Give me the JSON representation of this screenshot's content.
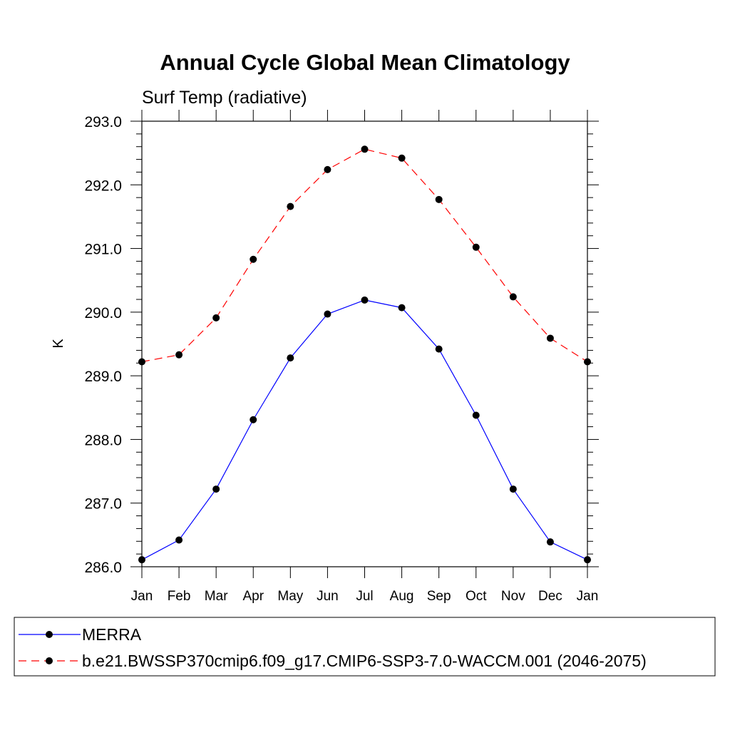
{
  "chart_data": {
    "type": "line",
    "title": "Annual Cycle Global Mean Climatology",
    "subtitle": "Surf Temp (radiative)",
    "xlabel": "",
    "ylabel": "K",
    "categories": [
      "Jan",
      "Feb",
      "Mar",
      "Apr",
      "May",
      "Jun",
      "Jul",
      "Aug",
      "Sep",
      "Oct",
      "Nov",
      "Dec",
      "Jan"
    ],
    "ylim": [
      286.0,
      293.0
    ],
    "yticks": [
      "286.0",
      "287.0",
      "288.0",
      "289.0",
      "290.0",
      "291.0",
      "292.0",
      "293.0"
    ],
    "grid": false,
    "legend_position": "bottom",
    "series": [
      {
        "name": "MERRA",
        "color": "#0000ff",
        "line_style": "solid",
        "values": [
          286.11,
          286.42,
          287.22,
          288.31,
          289.28,
          289.97,
          290.19,
          290.07,
          289.42,
          288.38,
          287.22,
          286.39,
          286.11
        ]
      },
      {
        "name": "b.e21.BWSSP370cmip6.f09_g17.CMIP6-SSP3-7.0-WACCM.001 (2046-2075)",
        "color": "#ff0000",
        "line_style": "dashed",
        "values": [
          289.22,
          289.33,
          289.91,
          290.83,
          291.66,
          292.24,
          292.56,
          292.42,
          291.77,
          291.02,
          290.24,
          289.59,
          289.22
        ]
      }
    ]
  }
}
